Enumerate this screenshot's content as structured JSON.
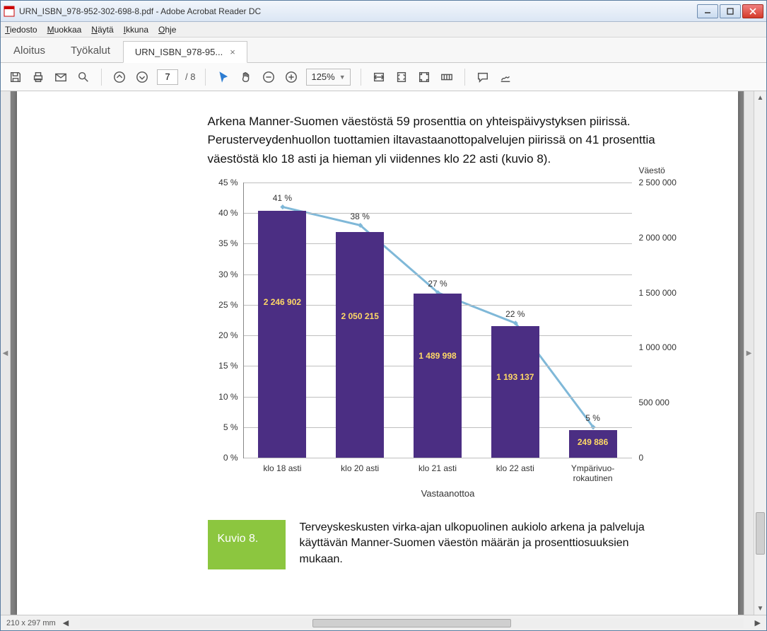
{
  "window": {
    "title": "URN_ISBN_978-952-302-698-8.pdf - Adobe Acrobat Reader DC"
  },
  "menu": {
    "file": "Tiedosto",
    "file_u": "T",
    "edit": "Muokkaa",
    "edit_u": "M",
    "view": "Näytä",
    "view_u": "N",
    "window": "Ikkuna",
    "window_u": "I",
    "help": "Ohje",
    "help_u": "O"
  },
  "tabs": {
    "home": "Aloitus",
    "tools": "Työkalut",
    "active": "URN_ISBN_978-95..."
  },
  "toolbar": {
    "page_current": "7",
    "page_total": "/ 8",
    "zoom": "125%"
  },
  "status": {
    "page_size": "210 x 297 mm"
  },
  "doc": {
    "para": "Arkena Manner-Suomen väestöstä 59 prosenttia on yhteispäivystyksen piirissä. Perusterveydenhuollon tuottamien iltavastaanottopalvelujen piirissä on 41 prosenttia väestöstä klo 18 asti ja hieman yli viidennes klo 22 asti (kuvio 8).",
    "caption_tag": "Kuvio 8.",
    "caption_text": "Terveyskeskusten virka-ajan ulkopuolinen aukiolo arkena ja palveluja käyttävän Manner-Suomen väestön määrän ja prosenttiosuuksien mukaan."
  },
  "chart": {
    "type": "bar+line",
    "x_axis_title": "Vastaanottoa",
    "y_right_title": "Väestö",
    "categories": [
      "klo 18 asti",
      "klo 20 asti",
      "klo 21 asti",
      "klo 22 asti",
      "Ympärivuo-\nrokautinen"
    ],
    "bar_values": [
      "2 246 902",
      "2 050 215",
      "1 489 998",
      "1 193 137",
      "249 886"
    ],
    "bar_heights_pct": [
      40.4,
      36.9,
      26.8,
      21.5,
      4.5
    ],
    "line_pct": [
      41,
      38,
      27,
      22,
      5
    ],
    "line_labels": [
      "41 %",
      "38 %",
      "27 %",
      "22 %",
      "5 %"
    ],
    "y_left_ticks": [
      0,
      5,
      10,
      15,
      20,
      25,
      30,
      35,
      40,
      45
    ],
    "y_left_labels": [
      "0 %",
      "5 %",
      "10 %",
      "15 %",
      "20 %",
      "25 %",
      "30 %",
      "35 %",
      "40 %",
      "45 %"
    ],
    "y_left_max": 45,
    "y_right_ticks": [
      0,
      500000,
      1000000,
      1500000,
      2000000,
      2500000
    ],
    "y_right_labels": [
      "0",
      "500 000",
      "1 000 000",
      "1 500 000",
      "2 000 000",
      "2 500 000"
    ],
    "y_right_max": 2500000,
    "bar_color": "#4b2e83",
    "bar_label_color": "#ffd966",
    "line_color": "#7fb8d8",
    "line_width": 3,
    "marker_color": "#7fb8d8",
    "marker_size": 5,
    "grid_color": "#bfbfbf",
    "background_color": "#ffffff",
    "bar_width_ratio": 0.62,
    "font_size": 12
  }
}
